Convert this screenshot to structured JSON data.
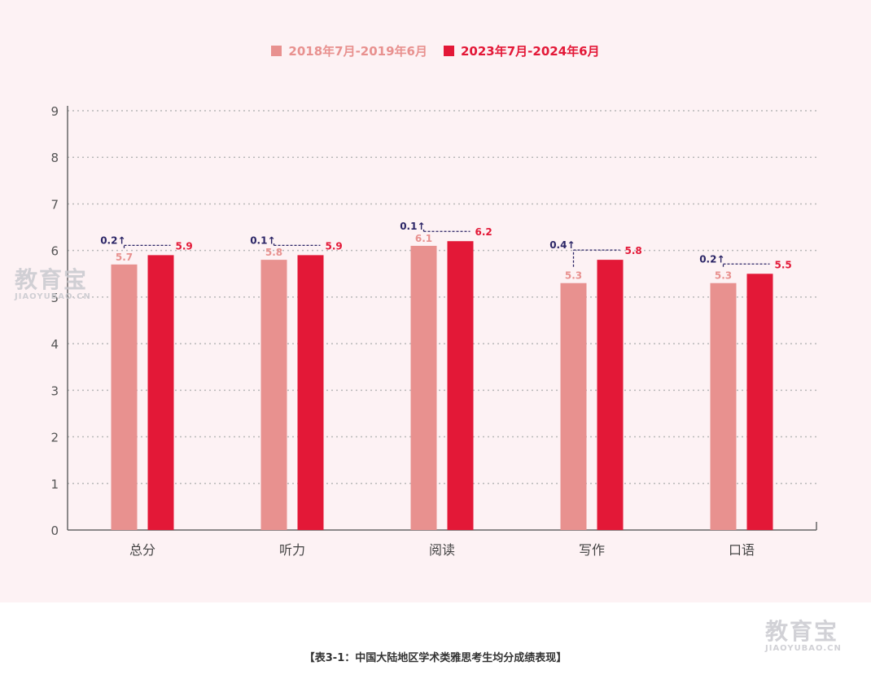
{
  "chart_data": {
    "type": "bar",
    "categories": [
      "总分",
      "听力",
      "阅读",
      "写作",
      "口语"
    ],
    "series": [
      {
        "name": "2018年7月-2019年6月",
        "values": [
          5.7,
          5.8,
          6.1,
          5.3,
          5.3
        ],
        "color": "#e8918f"
      },
      {
        "name": "2023年7月-2024年6月",
        "values": [
          5.9,
          5.9,
          6.2,
          5.8,
          5.5
        ],
        "color": "#e31837"
      }
    ],
    "value_labels": [
      [
        "5.7",
        "5.8",
        "6.1",
        "5.3",
        "5.3"
      ],
      [
        "5.9",
        "5.9",
        "6.2",
        "5.8",
        "5.5"
      ]
    ],
    "changes": [
      "0.2↑",
      "0.1↑",
      "0.1↑",
      "0.4↑",
      "0.2↑"
    ],
    "change_color": "#2b2566",
    "yticks": [
      "0",
      "1",
      "2",
      "3",
      "4",
      "5",
      "6",
      "7",
      "8",
      "9"
    ],
    "ylim": [
      0,
      9
    ],
    "grid": true,
    "legend": "top-center",
    "xlabel": "",
    "ylabel": ""
  },
  "caption": "【表3-1：中国大陆地区学术类雅思考生均分成绩表现】",
  "watermark": {
    "logo": "教育宝",
    "domain": "JIAOYUBAO.CN"
  }
}
